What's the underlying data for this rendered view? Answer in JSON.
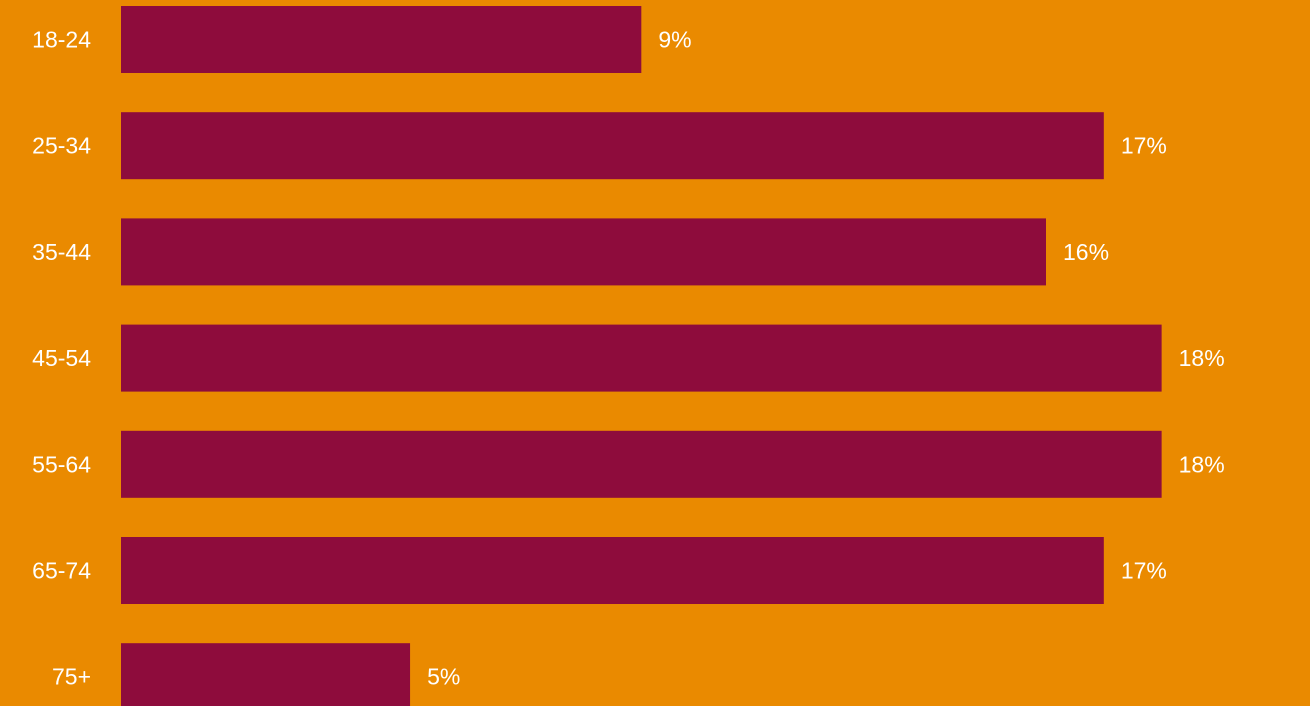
{
  "colors": {
    "background": "#EA8A00",
    "bar": "#8E0C3C",
    "text": "#FFFFFF"
  },
  "chart_data": {
    "type": "bar",
    "orientation": "horizontal",
    "categories": [
      "18-24",
      "25-34",
      "35-44",
      "45-54",
      "55-64",
      "65-74",
      "75+"
    ],
    "values": [
      9,
      17,
      16,
      18,
      18,
      17,
      5
    ],
    "value_labels": [
      "9%",
      "17%",
      "16%",
      "18%",
      "18%",
      "17%",
      "5%"
    ],
    "unit": "%",
    "xlim": [
      0,
      19.2
    ],
    "grid": false,
    "legend": "none"
  }
}
